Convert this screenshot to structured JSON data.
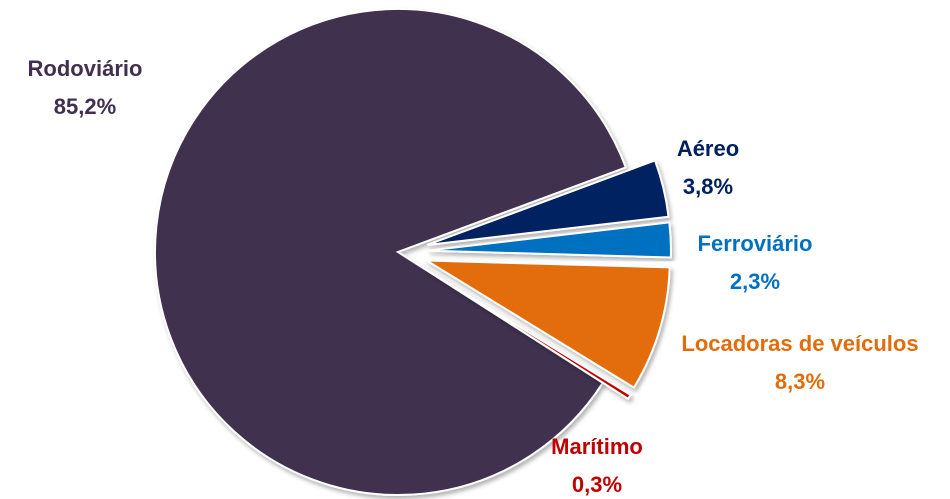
{
  "chart_data": {
    "type": "pie",
    "categories": [
      "Rodoviário",
      "Aéreo",
      "Ferroviário",
      "Locadoras de veículos",
      "Marítimo"
    ],
    "values": [
      85.2,
      3.8,
      2.3,
      8.3,
      0.3
    ],
    "value_labels": [
      "85,2%",
      "3,8%",
      "2,3%",
      "8,3%",
      "0,3%"
    ],
    "colors": [
      "#3f3050",
      "#002060",
      "#0070c0",
      "#e36c0a",
      "#c00000"
    ]
  }
}
